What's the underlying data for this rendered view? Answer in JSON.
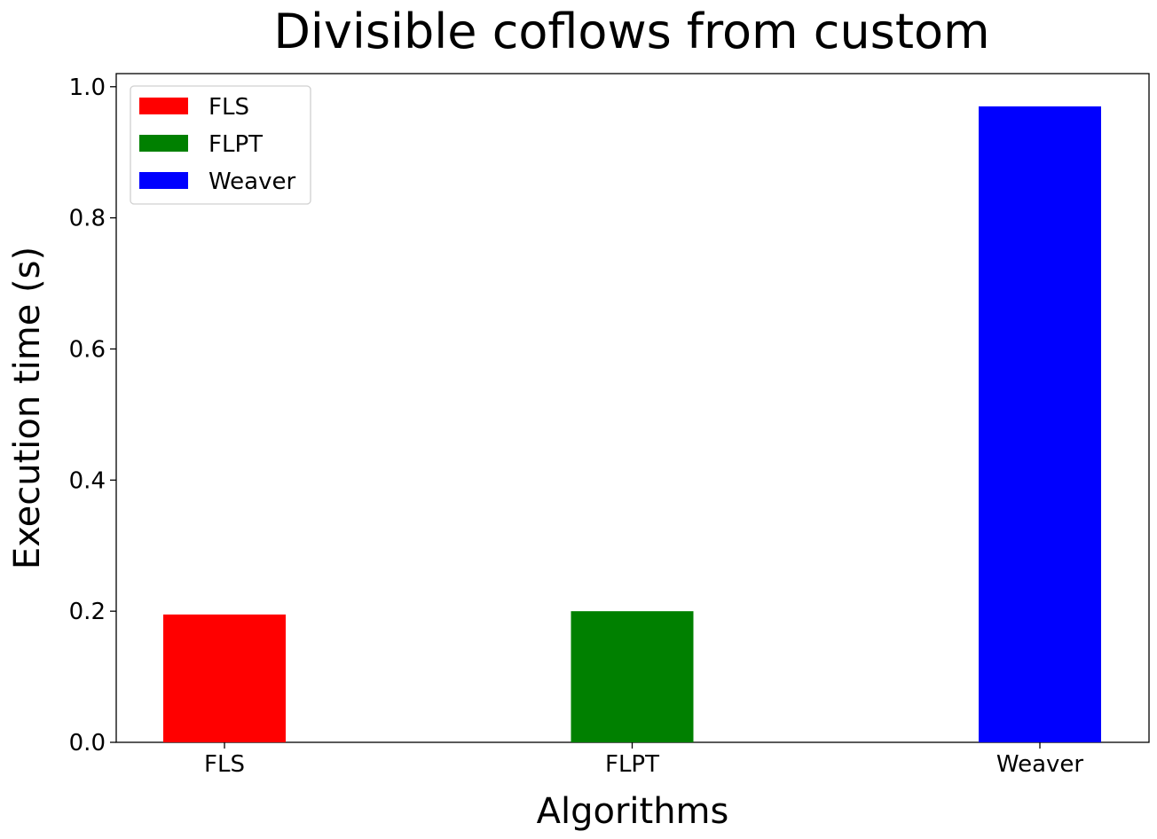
{
  "chart_data": {
    "type": "bar",
    "title": "Divisible coflows from custom",
    "xlabel": "Algorithms",
    "ylabel": "Execution time (s)",
    "categories": [
      "FLS",
      "FLPT",
      "Weaver"
    ],
    "values": [
      0.195,
      0.2,
      0.97
    ],
    "colors": [
      "#ff0000",
      "#008000",
      "#0000ff"
    ],
    "ylim": [
      0,
      1.02
    ],
    "yticks": [
      0.0,
      0.2,
      0.4,
      0.6,
      0.8,
      1.0
    ],
    "ytick_labels": [
      "0.0",
      "0.2",
      "0.4",
      "0.6",
      "0.8",
      "1.0"
    ],
    "grid": false,
    "legend": {
      "placement": "top-left",
      "entries": [
        "FLS",
        "FLPT",
        "Weaver"
      ]
    }
  }
}
